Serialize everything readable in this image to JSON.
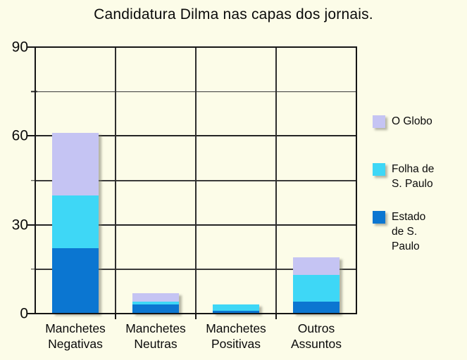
{
  "title": "Candidatura Dilma nas capas dos jornais.",
  "colors": {
    "background": "#FCFCE8",
    "estado_blue": "#0B76D1",
    "folha_cyan": "#3ED7F6",
    "globo_lavender": "#C5C4F3",
    "grid": "#2e2e2e",
    "axis": "#151515",
    "text": "#0a0a0a"
  },
  "chart_data": {
    "type": "bar",
    "stacked": true,
    "title": "Candidatura Dilma nas capas dos jornais.",
    "categories": [
      [
        "Manchetes",
        "Negativas"
      ],
      [
        "Manchetes",
        "Neutras"
      ],
      [
        "Manchetes",
        "Positivas"
      ],
      [
        "Outros",
        "Assuntos"
      ]
    ],
    "series": [
      {
        "name": "Estado de S. Paulo",
        "legend_lines": [
          "Estado",
          "de S.",
          "Paulo"
        ],
        "color": "#0B76D1",
        "values": [
          22,
          3,
          1,
          4
        ]
      },
      {
        "name": "Folha de S. Paulo",
        "legend_lines": [
          "Folha de",
          "S. Paulo"
        ],
        "color": "#3ED7F6",
        "values": [
          18,
          1,
          2,
          9
        ]
      },
      {
        "name": "O Globo",
        "legend_lines": [
          "O Globo"
        ],
        "color": "#C5C4F3",
        "values": [
          21,
          3,
          0,
          6
        ]
      }
    ],
    "totals": [
      61,
      7,
      3,
      19
    ],
    "xlabel": "",
    "ylabel": "",
    "ylim": [
      0,
      90
    ],
    "y_major_ticks": [
      0,
      30,
      60,
      90
    ],
    "y_minor_step": 15,
    "grid": true,
    "legend_position": "right",
    "legend_order_top_to_bottom": [
      "O Globo",
      "Folha de S. Paulo",
      "Estado de S. Paulo"
    ]
  }
}
